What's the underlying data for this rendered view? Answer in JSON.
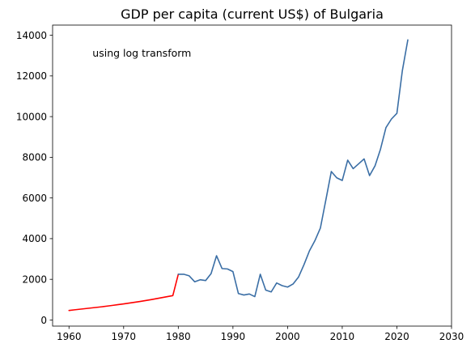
{
  "chart_data": {
    "type": "line",
    "title": "GDP per capita (current US$) of Bulgaria",
    "xlabel": "",
    "ylabel": "",
    "xlim": [
      1957.0,
      2030.0
    ],
    "ylim": [
      -300,
      14500
    ],
    "xticks": [
      1960,
      1970,
      1980,
      1990,
      2000,
      2010,
      2020,
      2030
    ],
    "yticks": [
      0,
      2000,
      4000,
      6000,
      8000,
      10000,
      12000,
      14000
    ],
    "grid": false,
    "annotation": "using log transform",
    "series": [
      {
        "color": "#ff0000",
        "x": [
          1960,
          1961,
          1962,
          1963,
          1964,
          1965,
          1966,
          1967,
          1968,
          1969,
          1970,
          1971,
          1972,
          1973,
          1974,
          1975,
          1976,
          1977,
          1978,
          1979,
          1980
        ],
        "y": [
          470,
          500,
          530,
          560,
          590,
          620,
          650,
          685,
          720,
          755,
          790,
          830,
          870,
          910,
          955,
          1000,
          1050,
          1100,
          1150,
          1200,
          2250
        ]
      },
      {
        "color": "#3a6ea5",
        "x": [
          1980,
          1981,
          1982,
          1983,
          1984,
          1985,
          1986,
          1987,
          1988,
          1989,
          1990,
          1991,
          1992,
          1993,
          1994,
          1995,
          1996,
          1997,
          1998,
          1999,
          2000,
          2001,
          2002,
          2003,
          2004,
          2005,
          2006,
          2007,
          2008,
          2009,
          2010,
          2011,
          2012,
          2013,
          2014,
          2015,
          2016,
          2017,
          2018,
          2019,
          2020,
          2021,
          2022
        ],
        "y": [
          2250,
          2250,
          2170,
          1880,
          1980,
          1940,
          2280,
          3160,
          2530,
          2510,
          2380,
          1300,
          1230,
          1280,
          1150,
          2250,
          1470,
          1380,
          1820,
          1690,
          1620,
          1770,
          2110,
          2720,
          3400,
          3900,
          4520,
          5900,
          7300,
          6990,
          6860,
          7860,
          7440,
          7680,
          7920,
          7100,
          7580,
          8400,
          9460,
          9880,
          10160,
          12260,
          13770
        ]
      }
    ]
  }
}
